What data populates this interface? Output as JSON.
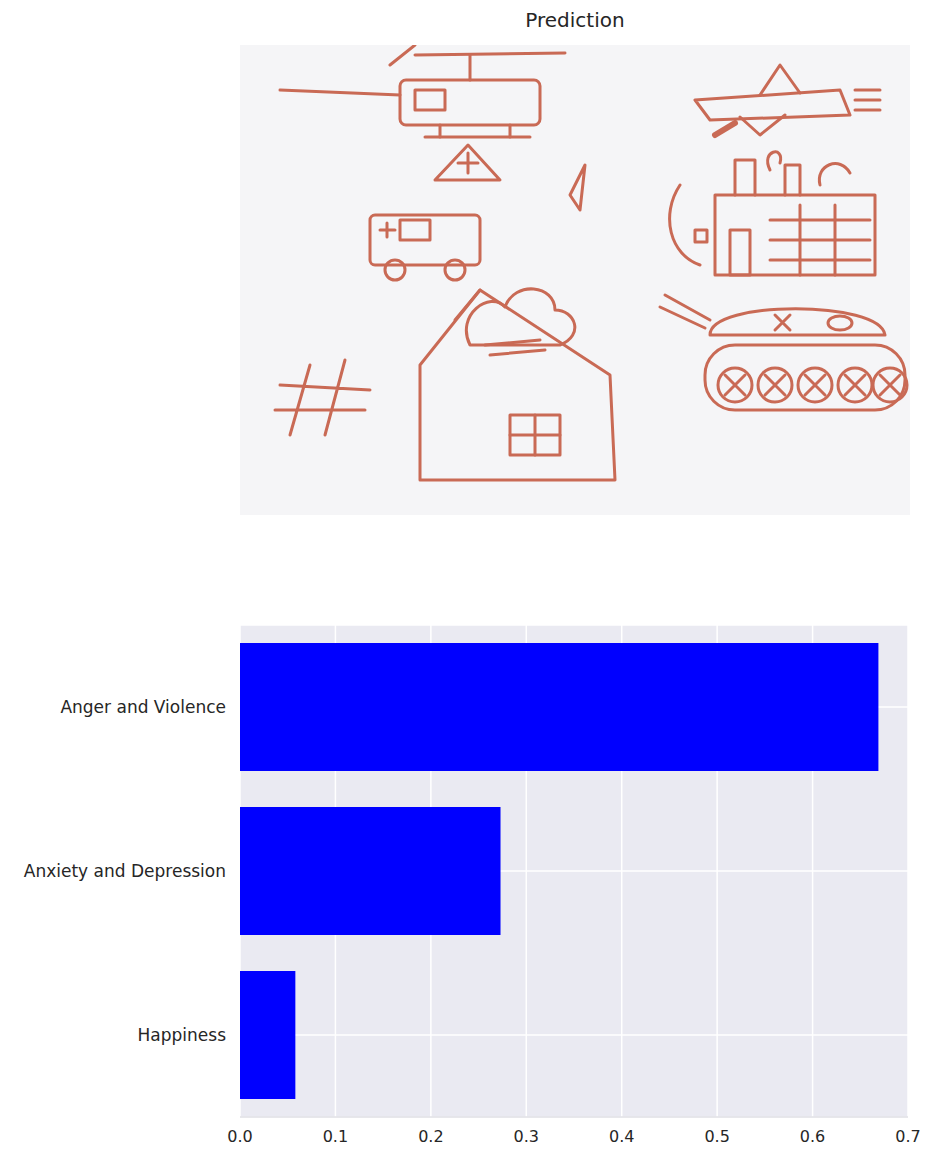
{
  "image": {
    "title": "Prediction"
  },
  "chart_data": {
    "type": "bar",
    "orientation": "horizontal",
    "categories": [
      "Anger and Violence",
      "Anxiety and Depression",
      "Happiness"
    ],
    "values": [
      0.669,
      0.273,
      0.058
    ],
    "color": "#0000ff",
    "xlim": [
      0,
      0.7
    ],
    "xticks": [
      {
        "value": 0,
        "label": "0.0"
      },
      0.1,
      0.2,
      0.3,
      0.4,
      0.5,
      0.6,
      0.7
    ],
    "grid": true
  }
}
